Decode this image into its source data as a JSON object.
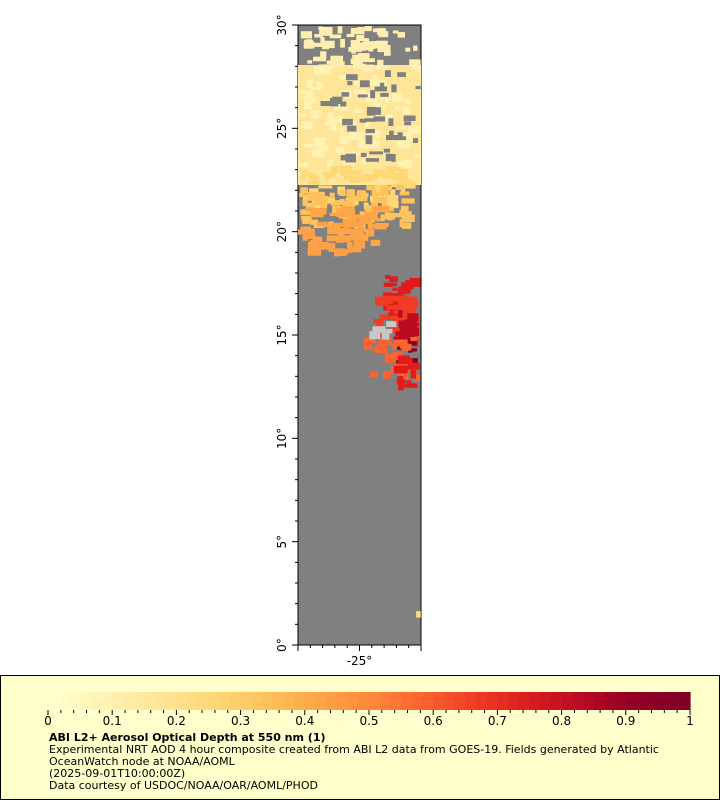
{
  "map": {
    "lat_ticks": [
      "0°",
      "5°",
      "10°",
      "15°",
      "20°",
      "25°",
      "30°"
    ],
    "lat_values": [
      0,
      5,
      10,
      15,
      20,
      25,
      30
    ],
    "lon_ticks": [
      "-25°"
    ],
    "lon_values": [
      -25
    ],
    "lat_range": [
      0,
      30
    ],
    "lon_range": [
      -30,
      -20
    ],
    "colors": {
      "land_or_nodata": "#808080",
      "low": "#ffeeb0",
      "mid": "#fea04a",
      "high": "#e11b1c",
      "max": "#800026",
      "cloud_mask": "#c8c8c8"
    }
  },
  "legend": {
    "tick_labels": [
      "0",
      "0.1",
      "0.2",
      "0.3",
      "0.4",
      "0.5",
      "0.6",
      "0.7",
      "0.8",
      "0.9",
      "1"
    ],
    "tick_values": [
      0,
      0.1,
      0.2,
      0.3,
      0.4,
      0.5,
      0.6,
      0.7,
      0.8,
      0.9,
      1
    ],
    "range": [
      0,
      1
    ],
    "colors": [
      "#ffffcc",
      "#fff2b2",
      "#ffe598",
      "#fed877",
      "#fec35c",
      "#fea646",
      "#fd8a3b",
      "#fc6330",
      "#f03c24",
      "#da1e1e",
      "#bb0a22",
      "#930025",
      "#800026"
    ]
  },
  "caption": {
    "title": "ABI L2+ Aerosol Optical Depth at 550 nm (1)",
    "line1": "Experimental NRT AOD 4 hour composite created from ABI L2 data from GOES-19. Fields generated by Atlantic OceanWatch node at NOAA/AOML",
    "line2": "(2025-09-01T10:00:00Z)",
    "line3": "Data courtesy of USDOC/NOAA/OAR/AOML/PHOD"
  }
}
